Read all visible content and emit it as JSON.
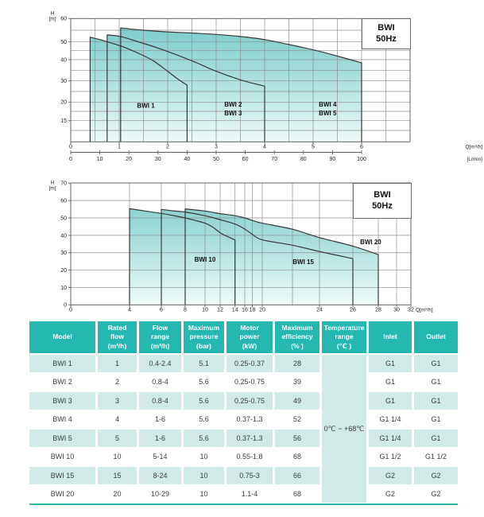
{
  "colors": {
    "teal_header": "#25b8b1",
    "row_tint": "#cfeae7",
    "fill_top": "#7acccb",
    "fill_mid": "#a9dfdd",
    "fill_bottom": "#eefaf8",
    "grid": "#8f8f8f",
    "axis": "#606060",
    "curve": "#383838",
    "tick_text": "#222222"
  },
  "chart_data": [
    {
      "type": "area",
      "title": "BWI 50Hz",
      "title_line1": "BWI",
      "title_line2": "50Hz",
      "ylabel": "H",
      "ylabel_unit": "[m]",
      "xlabel": "Q[m³/h]",
      "x2label": "[L/min]",
      "ylim": [
        11,
        60
      ],
      "y_ticks": [
        60,
        50,
        40,
        30,
        20,
        15
      ],
      "x_ticks": [
        0,
        1,
        2,
        3,
        4,
        5,
        6
      ],
      "x2_ticks": [
        0,
        10,
        20,
        30,
        40,
        50,
        60,
        70,
        80,
        90,
        100
      ],
      "grid": true,
      "region_labels": [
        "BWI 1",
        "BWI 2",
        "BWI 3",
        "BWI 4",
        "BWI 5"
      ],
      "series": [
        {
          "name": "BWI 1",
          "flow_range_m3h": [
            0.4,
            2.4
          ],
          "points": [
            [
              0.4,
              52
            ],
            [
              0.6,
              51
            ],
            [
              0.8,
              49.7
            ],
            [
              1.1,
              47
            ],
            [
              1.4,
              43.5
            ],
            [
              1.7,
              39.5
            ],
            [
              2.0,
              34.5
            ],
            [
              2.2,
              31
            ],
            [
              2.4,
              28
            ]
          ]
        },
        {
          "name": "BWI 2 / BWI 3",
          "flow_range_m3h": [
            0.8,
            4
          ],
          "points": [
            [
              0.75,
              53
            ],
            [
              1.03,
              52.3
            ],
            [
              1.4,
              50
            ],
            [
              1.8,
              46.5
            ],
            [
              2.2,
              42.5
            ],
            [
              2.6,
              38.5
            ],
            [
              3.0,
              34.5
            ],
            [
              3.5,
              30.5
            ],
            [
              4.0,
              27.5
            ]
          ]
        },
        {
          "name": "BWI 4 / BWI 5",
          "flow_range_m3h": [
            1,
            6
          ],
          "points": [
            [
              1.03,
              56
            ],
            [
              1.5,
              55
            ],
            [
              2,
              54.3
            ],
            [
              2.5,
              53.8
            ],
            [
              3,
              53.2
            ],
            [
              3.5,
              52.3
            ],
            [
              4,
              51
            ],
            [
              4.5,
              48.5
            ],
            [
              5,
              45.5
            ],
            [
              5.5,
              42
            ],
            [
              6,
              38.5
            ]
          ]
        }
      ]
    },
    {
      "type": "area",
      "title": "BWI 50Hz",
      "title_line1": "BWI",
      "title_line2": "50Hz",
      "ylabel": "H",
      "ylabel_unit": "[m]",
      "xlabel": "Q[m³/h]",
      "ylim": [
        0,
        70
      ],
      "y_ticks": [
        70,
        60,
        50,
        40,
        30,
        20,
        10,
        0
      ],
      "x_ticks": [
        0,
        4,
        6,
        8,
        10,
        12,
        14,
        16,
        18,
        20,
        24,
        26,
        28,
        30,
        32
      ],
      "grid": true,
      "region_labels": [
        "BWI 10",
        "BWI 15",
        "BWI 20"
      ],
      "series": [
        {
          "name": "BWI 10",
          "flow_range_m3h": [
            5,
            14
          ],
          "points": [
            [
              4,
              55.3
            ],
            [
              5,
              54
            ],
            [
              6,
              52.6
            ],
            [
              7,
              51.4
            ],
            [
              8,
              50
            ],
            [
              9,
              48.6
            ],
            [
              10,
              47
            ],
            [
              11,
              44.8
            ],
            [
              12,
              41.5
            ],
            [
              13,
              39.3
            ],
            [
              14,
              37.3
            ]
          ]
        },
        {
          "name": "BWI 15",
          "flow_range_m3h": [
            8,
            24
          ],
          "points": [
            [
              6,
              54.9
            ],
            [
              7,
              54.1
            ],
            [
              8,
              53.4
            ],
            [
              10,
              51.3
            ],
            [
              12,
              49
            ],
            [
              14,
              46.5
            ],
            [
              16,
              43.6
            ],
            [
              18,
              40.6
            ],
            [
              20,
              37.4
            ],
            [
              22,
              34.3
            ],
            [
              24,
              30.7
            ],
            [
              26,
              26.6
            ]
          ]
        },
        {
          "name": "BWI 20",
          "flow_range_m3h": [
            10,
            29
          ],
          "points": [
            [
              8,
              55.2
            ],
            [
              10,
              54
            ],
            [
              12,
              52.5
            ],
            [
              14,
              51.3
            ],
            [
              16,
              50
            ],
            [
              18,
              48.6
            ],
            [
              20,
              47
            ],
            [
              22,
              43.5
            ],
            [
              24,
              38.7
            ],
            [
              26,
              33.8
            ],
            [
              28,
              28.9
            ]
          ]
        }
      ]
    }
  ],
  "table": {
    "headers": [
      "Model",
      "Rated\nflow\n(m³/h)",
      "Flow\nrange\n(m³/h)",
      "Maximum\npressure\n(bar)",
      "Motor\npower\n(kW)",
      "Maximum\nefficiency\n(% )",
      "Temperature\nrange\n(℃ )",
      "Inlet",
      "Outlet"
    ],
    "temperature_value": "0℃ ~ +68℃",
    "rows": [
      {
        "model": "BWI 1",
        "rated_flow": "1",
        "flow_range": "0.4-2.4",
        "max_pressure": "5.1",
        "motor_power": "0.25-0.37",
        "max_efficiency": "28",
        "inlet": "G1",
        "outlet": "G1"
      },
      {
        "model": "BWI 2",
        "rated_flow": "2",
        "flow_range": "0.8-4",
        "max_pressure": "5.6",
        "motor_power": "0.25-0.75",
        "max_efficiency": "39",
        "inlet": "G1",
        "outlet": "G1"
      },
      {
        "model": "BWI 3",
        "rated_flow": "3",
        "flow_range": "0.8-4",
        "max_pressure": "5.6",
        "motor_power": "0.25-0.75",
        "max_efficiency": "49",
        "inlet": "G1",
        "outlet": "G1"
      },
      {
        "model": "BWI 4",
        "rated_flow": "4",
        "flow_range": "1-6",
        "max_pressure": "5.6",
        "motor_power": "0.37-1.3",
        "max_efficiency": "52",
        "inlet": "G1 1/4",
        "outlet": "G1"
      },
      {
        "model": "BWI 5",
        "rated_flow": "5",
        "flow_range": "1-6",
        "max_pressure": "5.6",
        "motor_power": "0.37-1.3",
        "max_efficiency": "56",
        "inlet": "G1 1/4",
        "outlet": "G1"
      },
      {
        "model": "BWI 10",
        "rated_flow": "10",
        "flow_range": "5-14",
        "max_pressure": "10",
        "motor_power": "0.55-1.8",
        "max_efficiency": "68",
        "inlet": "G1 1/2",
        "outlet": "G1 1/2"
      },
      {
        "model": "BWI 15",
        "rated_flow": "15",
        "flow_range": "8-24",
        "max_pressure": "10",
        "motor_power": "0.75-3",
        "max_efficiency": "66",
        "inlet": "G2",
        "outlet": "G2"
      },
      {
        "model": "BWI 20",
        "rated_flow": "20",
        "flow_range": "10-29",
        "max_pressure": "10",
        "motor_power": "1.1-4",
        "max_efficiency": "68",
        "inlet": "G2",
        "outlet": "G2"
      }
    ]
  }
}
